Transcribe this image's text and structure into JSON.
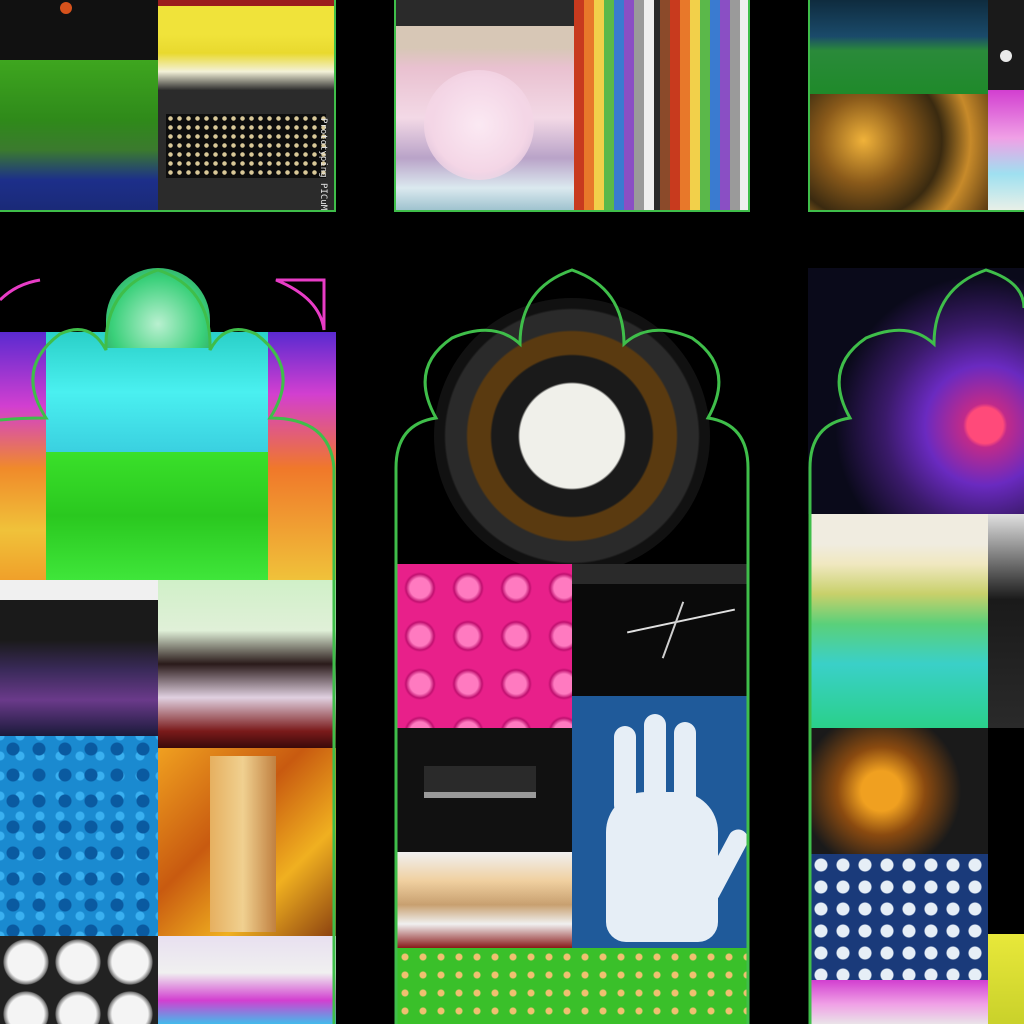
{
  "artwork": {
    "palette": {
      "background": "#000000",
      "frame_green": "#3fbe4a",
      "corner_magenta": "#e83cc6"
    },
    "pcb_board_label": "Prototyping PICuMod"
  }
}
